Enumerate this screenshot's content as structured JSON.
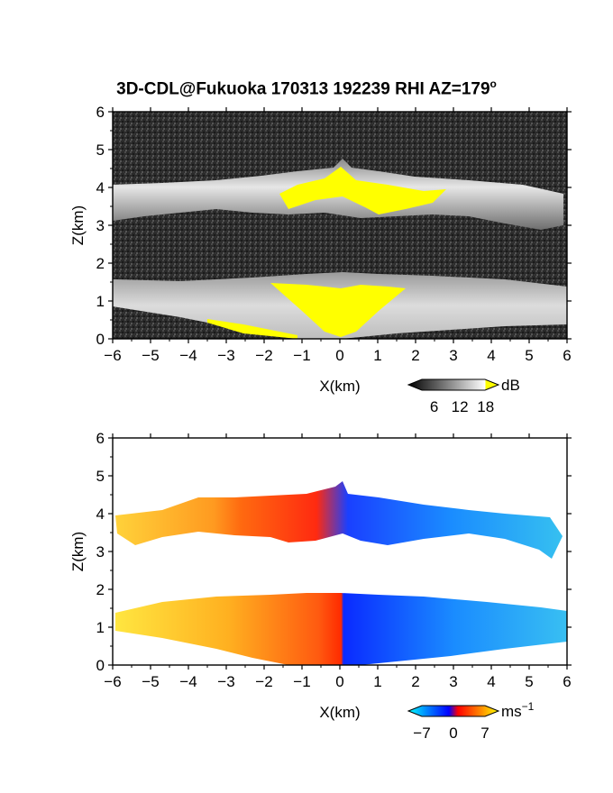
{
  "title": {
    "main": "3D-CDL@Fukuoka 170313 192239 RHI AZ=179",
    "degree": "o"
  },
  "chart_data": [
    {
      "type": "heatmap",
      "name": "reflectivity",
      "xlabel": "X(km)",
      "ylabel": "Z(km)",
      "xlim": [
        -6,
        6
      ],
      "ylim": [
        0,
        6
      ],
      "xticks": [
        "-6",
        "-5",
        "-4",
        "-3",
        "-2",
        "-1",
        "0",
        "1",
        "2",
        "3",
        "4",
        "5",
        "6"
      ],
      "yticks": [
        "0",
        "1",
        "2",
        "3",
        "4",
        "5",
        "6"
      ],
      "colorbar": {
        "unit": "dB",
        "ticks": [
          "6",
          "12",
          "18"
        ],
        "range": [
          0,
          21
        ]
      },
      "layers": {
        "upper_cloud": {
          "x_range": [
            -6,
            6
          ],
          "z_range": [
            3.1,
            4.8
          ]
        },
        "lower_aerosol": {
          "x_range": [
            -6,
            6
          ],
          "z_range": [
            0,
            1.6
          ]
        }
      }
    },
    {
      "type": "heatmap",
      "name": "doppler_velocity",
      "xlabel": "X(km)",
      "ylabel": "Z(km)",
      "xlim": [
        -6,
        6
      ],
      "ylim": [
        0,
        6
      ],
      "xticks": [
        "-6",
        "-5",
        "-4",
        "-3",
        "-2",
        "-1",
        "0",
        "1",
        "2",
        "3",
        "4",
        "5",
        "6"
      ],
      "yticks": [
        "0",
        "1",
        "2",
        "3",
        "4",
        "5",
        "6"
      ],
      "colorbar": {
        "unit": "ms",
        "unit_exp": "−1",
        "ticks": [
          "−7",
          "0",
          "7"
        ],
        "range": [
          -10,
          10
        ]
      },
      "layers": {
        "upper_cloud": {
          "x_range": [
            -5.9,
            5.8
          ],
          "z_range": [
            2.8,
            4.8
          ]
        },
        "lower_layer": {
          "x_range": [
            -6,
            6
          ],
          "z_range": [
            0,
            1.9
          ]
        }
      }
    }
  ]
}
